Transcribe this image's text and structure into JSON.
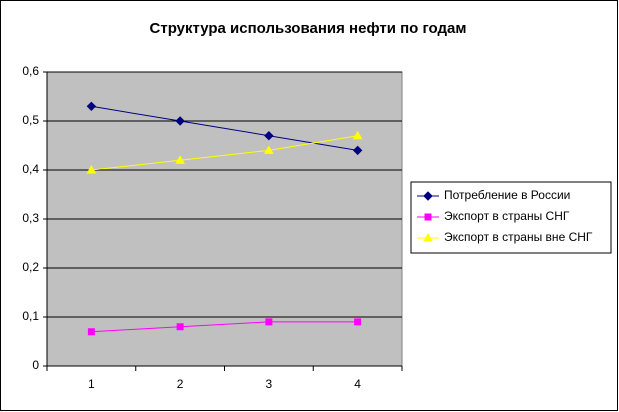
{
  "chart_data": {
    "type": "line",
    "title": "Структура использования нефти по годам",
    "categories": [
      "1",
      "2",
      "3",
      "4"
    ],
    "series": [
      {
        "name": "Потребление в России",
        "color": "#000080",
        "marker": "diamond",
        "values": [
          0.53,
          0.5,
          0.47,
          0.44
        ]
      },
      {
        "name": "Экспорт в страны СНГ",
        "color": "#ff00ff",
        "marker": "square",
        "values": [
          0.07,
          0.08,
          0.09,
          0.09
        ]
      },
      {
        "name": "Экспорт в страны вне СНГ",
        "color": "#ffff00",
        "marker": "triangle",
        "values": [
          0.4,
          0.42,
          0.44,
          0.47
        ]
      }
    ],
    "ylim": [
      0,
      0.6
    ],
    "yticks": [
      0,
      {
        "value": 0.1,
        "label": "0,1"
      },
      {
        "value": 0.2,
        "label": "0,2"
      },
      {
        "value": 0.3,
        "label": "0,3"
      },
      {
        "value": 0.4,
        "label": "0,4"
      },
      {
        "value": 0.5,
        "label": "0,5"
      },
      {
        "value": 0.6,
        "label": "0,6"
      }
    ],
    "grid": true,
    "plot_background": "#c0c0c0",
    "legend": "right"
  }
}
